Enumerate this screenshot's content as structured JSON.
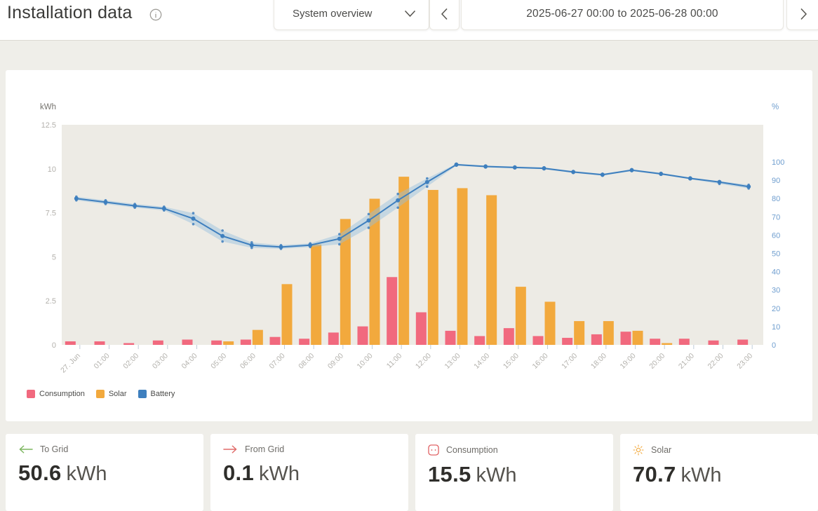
{
  "header": {
    "title": "Installation data",
    "view_selector": {
      "value": "System overview"
    },
    "date_range": "2025-06-27 00:00 to 2025-06-28 00:00"
  },
  "chart_data": {
    "type": "bar",
    "title": "",
    "categories": [
      "27. Jun",
      "01:00",
      "02:00",
      "03:00",
      "04:00",
      "05:00",
      "06:00",
      "07:00",
      "08:00",
      "09:00",
      "10:00",
      "11:00",
      "12:00",
      "13:00",
      "14:00",
      "15:00",
      "16:00",
      "17:00",
      "18:00",
      "19:00",
      "20:00",
      "21:00",
      "22:00",
      "23:00"
    ],
    "left_axis": {
      "label": "kWh",
      "ticks": [
        0,
        2.5,
        5,
        7.5,
        10,
        12.5
      ],
      "max": 12.5
    },
    "right_axis": {
      "label": "%",
      "ticks": [
        0,
        10,
        20,
        30,
        40,
        50,
        60,
        70,
        80,
        90,
        100
      ],
      "max": 100
    },
    "series": [
      {
        "name": "Consumption",
        "type": "bar",
        "axis": "left",
        "color": "#F1697E",
        "values": [
          0.2,
          0.2,
          0.1,
          0.25,
          0.3,
          0.25,
          0.3,
          0.45,
          0.35,
          0.7,
          1.05,
          3.85,
          1.85,
          0.8,
          0.5,
          0.95,
          0.5,
          0.4,
          0.6,
          0.75,
          0.35,
          0.35,
          0.25,
          0.3
        ]
      },
      {
        "name": "Solar",
        "type": "bar",
        "axis": "left",
        "color": "#F2A93D",
        "values": [
          0,
          0,
          0,
          0,
          0,
          0.2,
          0.85,
          3.45,
          5.7,
          7.15,
          8.3,
          9.55,
          8.8,
          8.9,
          8.5,
          3.3,
          2.45,
          1.35,
          1.35,
          0.8,
          0.1,
          0,
          0,
          0
        ]
      },
      {
        "name": "Battery",
        "type": "line",
        "axis": "right",
        "color": "#3E7FBE",
        "band_color": "#94BEDE",
        "values": [
          80,
          78,
          76,
          74.5,
          69,
          59.5,
          54.5,
          53.5,
          54.5,
          58,
          68,
          79,
          89,
          98.5,
          97.5,
          97,
          96.5,
          94.5,
          93,
          95.5,
          93.5,
          91,
          89,
          86.5
        ],
        "min": [
          79,
          77,
          75,
          73.5,
          66,
          56.5,
          53,
          52.5,
          53.5,
          55,
          64,
          75,
          86.5,
          98,
          97,
          96.5,
          96,
          94,
          92.5,
          95,
          93,
          90.5,
          88,
          85.5
        ],
        "max": [
          81,
          79,
          77,
          75.5,
          72,
          62.5,
          56,
          54.5,
          55.5,
          60.5,
          71.5,
          82.5,
          91,
          99,
          98,
          97.5,
          97,
          95,
          93.5,
          96,
          94,
          91.5,
          89.5,
          87.5
        ]
      }
    ],
    "legend": [
      {
        "label": "Consumption",
        "color": "#F1697E"
      },
      {
        "label": "Solar",
        "color": "#F2A93D"
      },
      {
        "label": "Battery",
        "color": "#3E7FBE"
      }
    ],
    "legend_position": "bottom-left",
    "grid": false,
    "plot_background": "#EDEBE5"
  },
  "summary_cards": [
    {
      "id": "to-grid",
      "label": "To Grid",
      "value": "50.6",
      "unit": "kWh",
      "icon": "arrow-left-icon",
      "icon_color": "#7CB55F"
    },
    {
      "id": "from-grid",
      "label": "From Grid",
      "value": "0.1",
      "unit": "kWh",
      "icon": "arrow-right-icon",
      "icon_color": "#E06A68"
    },
    {
      "id": "consumption",
      "label": "Consumption",
      "value": "15.5",
      "unit": "kWh",
      "icon": "socket-icon",
      "icon_color": "#DE5457"
    },
    {
      "id": "solar",
      "label": "Solar",
      "value": "70.7",
      "unit": "kWh",
      "icon": "sun-icon",
      "icon_color": "#F2A93D"
    }
  ]
}
